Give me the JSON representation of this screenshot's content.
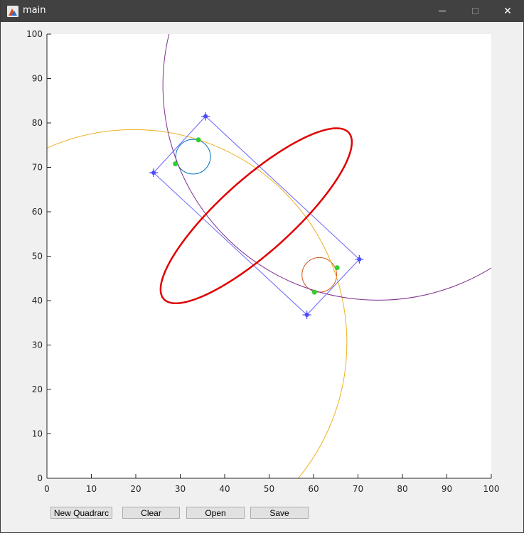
{
  "window": {
    "title": "main",
    "app_icon": "matlab-icon",
    "controls": [
      "minimize-icon",
      "maximize-icon",
      "close-icon"
    ],
    "close_glyph": "✕"
  },
  "buttons": {
    "new_quadrarc": "New Quadrarc",
    "clear": "Clear",
    "open": "Open",
    "save": "Save"
  },
  "chart_data": {
    "type": "line",
    "title": "",
    "xlabel": "",
    "ylabel": "",
    "xlim": [
      0,
      100
    ],
    "ylim": [
      0,
      100
    ],
    "xticks": [
      0,
      10,
      20,
      30,
      40,
      50,
      60,
      70,
      80,
      90,
      100
    ],
    "yticks": [
      0,
      10,
      20,
      30,
      40,
      50,
      60,
      70,
      80,
      90,
      100
    ],
    "grid": false,
    "colors": {
      "quadrilateral": "#6666ff",
      "control_point": "#4a4aff",
      "quadrarc": "#e00000",
      "tangent_point": "#30d030",
      "circle_1": "#0072bd",
      "circle_2": "#d95319",
      "circle_3": "#edb120",
      "circle_4": "#7e2f8e"
    },
    "control_points": [
      {
        "x": 24.0,
        "y": 68.8
      },
      {
        "x": 35.7,
        "y": 81.5
      },
      {
        "x": 70.3,
        "y": 49.3
      },
      {
        "x": 58.5,
        "y": 36.8
      }
    ],
    "circles": [
      {
        "name": "circle_1",
        "cx": 32.9,
        "cy": 72.4,
        "r": 3.9
      },
      {
        "name": "circle_2",
        "cx": 61.3,
        "cy": 45.8,
        "r": 3.9
      },
      {
        "name": "circle_3",
        "cx": 19.5,
        "cy": 30.5,
        "r": 48.0
      },
      {
        "name": "circle_4",
        "cx": 74.5,
        "cy": 88.5,
        "r": 48.4
      }
    ],
    "tangent_points": [
      {
        "x": 34.1,
        "y": 76.2
      },
      {
        "x": 28.9,
        "y": 70.8
      },
      {
        "x": 65.3,
        "y": 47.4
      },
      {
        "x": 60.2,
        "y": 41.9
      }
    ]
  }
}
